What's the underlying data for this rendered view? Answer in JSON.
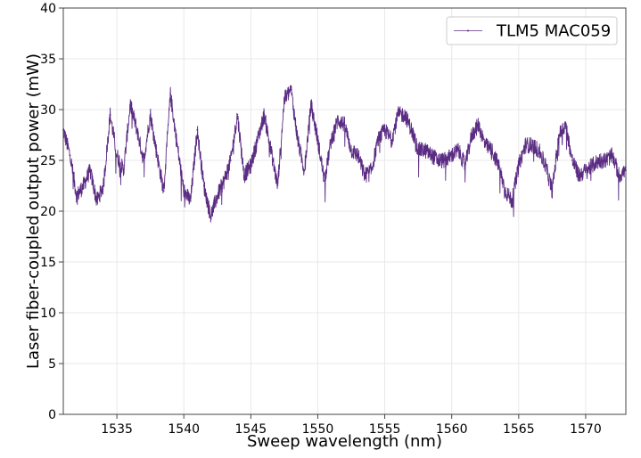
{
  "chart_data": {
    "type": "line",
    "title": "",
    "xlabel": "Sweep wavelength (nm)",
    "ylabel": "Laser fiber-coupled output power (mW)",
    "xlim": [
      1531,
      1573
    ],
    "ylim": [
      0,
      40
    ],
    "xticks": [
      1535,
      1540,
      1545,
      1550,
      1555,
      1560,
      1565,
      1570
    ],
    "yticks": [
      0,
      5,
      10,
      15,
      20,
      25,
      30,
      35,
      40
    ],
    "grid": true,
    "legend_position": "top-right",
    "series": [
      {
        "name": "TLM5 MAC059",
        "color": "#5b2c83",
        "x": [
          1531.0,
          1531.5,
          1532.0,
          1532.5,
          1533.0,
          1533.5,
          1534.0,
          1534.5,
          1535.0,
          1535.5,
          1536.0,
          1536.5,
          1537.0,
          1537.5,
          1538.0,
          1538.5,
          1539.0,
          1539.5,
          1540.0,
          1540.5,
          1541.0,
          1541.5,
          1542.0,
          1542.5,
          1543.0,
          1543.5,
          1544.0,
          1544.5,
          1545.0,
          1545.5,
          1546.0,
          1546.5,
          1547.0,
          1547.5,
          1548.0,
          1548.5,
          1549.0,
          1549.5,
          1550.0,
          1550.5,
          1551.0,
          1551.5,
          1552.0,
          1552.5,
          1553.0,
          1553.5,
          1554.0,
          1554.5,
          1555.0,
          1555.5,
          1556.0,
          1556.5,
          1557.0,
          1557.5,
          1558.0,
          1558.5,
          1559.0,
          1559.5,
          1560.0,
          1560.5,
          1561.0,
          1561.5,
          1562.0,
          1562.5,
          1563.0,
          1563.5,
          1564.0,
          1564.5,
          1565.0,
          1565.5,
          1566.0,
          1566.5,
          1567.0,
          1567.5,
          1568.0,
          1568.5,
          1569.0,
          1569.5,
          1570.0,
          1570.5,
          1571.0,
          1571.5,
          1572.0,
          1572.5,
          1573.0
        ],
        "y": [
          28.0,
          25.5,
          21.5,
          22.5,
          24.0,
          21.0,
          22.5,
          29.5,
          25.5,
          24.0,
          30.5,
          28.0,
          25.0,
          29.5,
          25.5,
          22.0,
          31.5,
          26.5,
          22.0,
          21.0,
          28.0,
          22.5,
          19.5,
          21.5,
          23.0,
          25.0,
          29.5,
          23.5,
          24.5,
          27.0,
          29.5,
          26.0,
          22.5,
          31.0,
          32.0,
          27.0,
          24.0,
          30.5,
          27.0,
          23.0,
          27.0,
          29.0,
          28.5,
          26.0,
          25.5,
          23.5,
          24.0,
          27.0,
          28.0,
          27.0,
          29.5,
          29.5,
          28.0,
          26.0,
          26.0,
          25.5,
          25.0,
          25.0,
          25.5,
          26.0,
          24.5,
          27.5,
          28.5,
          26.5,
          26.0,
          24.5,
          22.0,
          21.0,
          24.5,
          26.5,
          26.5,
          26.0,
          24.5,
          22.0,
          27.5,
          28.5,
          25.0,
          23.5,
          24.0,
          24.5,
          25.0,
          25.0,
          25.5,
          23.5,
          24.0
        ]
      }
    ]
  }
}
